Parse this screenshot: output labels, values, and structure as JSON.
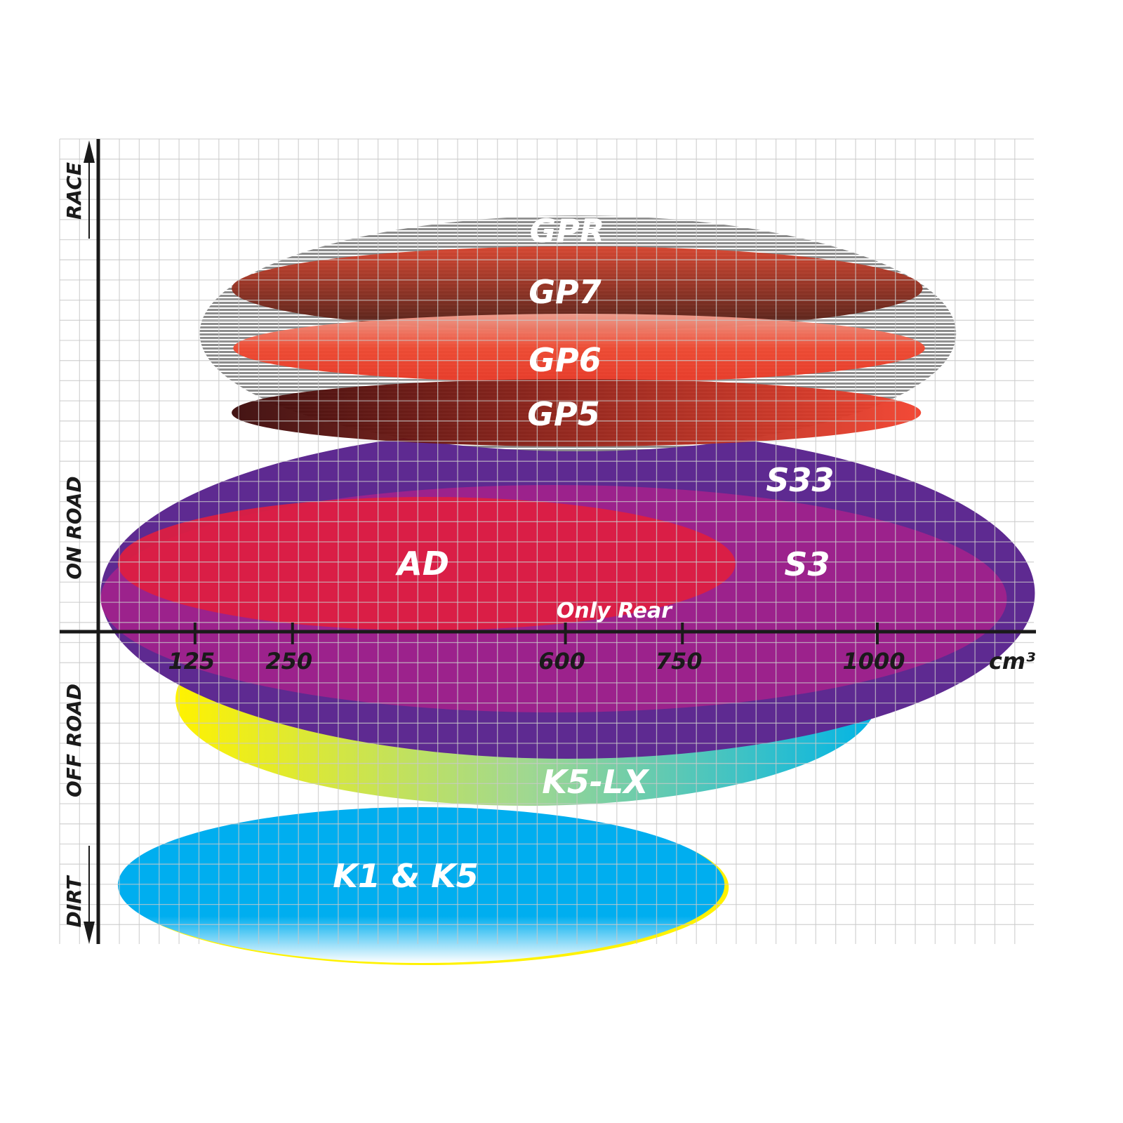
{
  "chart_data": {
    "type": "range-ellipse",
    "x_axis": {
      "unit": "cm³",
      "ticks": [
        "125",
        "250",
        "600",
        "750",
        "1000"
      ],
      "tick_values": [
        125,
        250,
        600,
        750,
        1000
      ],
      "range": [
        0,
        1200
      ]
    },
    "y_axis": {
      "labels": [
        "RACE",
        "ON ROAD",
        "OFF ROAD",
        "DIRT"
      ],
      "direction": "RACE up, DIRT down"
    },
    "grid": true,
    "series": [
      {
        "name": "GPR",
        "x_range": [
          131,
          1101
        ],
        "color": "#9a9a9a"
      },
      {
        "name": "GP7",
        "x_range": [
          172,
          1058
        ],
        "color": "#c0392b"
      },
      {
        "name": "GP6",
        "x_range": [
          174,
          1061
        ],
        "color": "#e8432e"
      },
      {
        "name": "GP5",
        "x_range": [
          172,
          1056
        ],
        "color": "#b0201a"
      },
      {
        "name": "S33",
        "x_range": [
          4,
          1202
        ],
        "color": "#5e2a91"
      },
      {
        "name": "S3",
        "x_range": [
          4,
          1166
        ],
        "color": "#a0208a"
      },
      {
        "name": "AD",
        "x_range": [
          26,
          818
        ],
        "color": "#e0203f"
      },
      {
        "name": "K5-LX",
        "x_range": [
          100,
          1000
        ],
        "color": "#8fd0b0",
        "note": "Only Rear"
      },
      {
        "name": "K1 & K5",
        "x_range": [
          26,
          804
        ],
        "color": "#00aeef"
      }
    ]
  }
}
